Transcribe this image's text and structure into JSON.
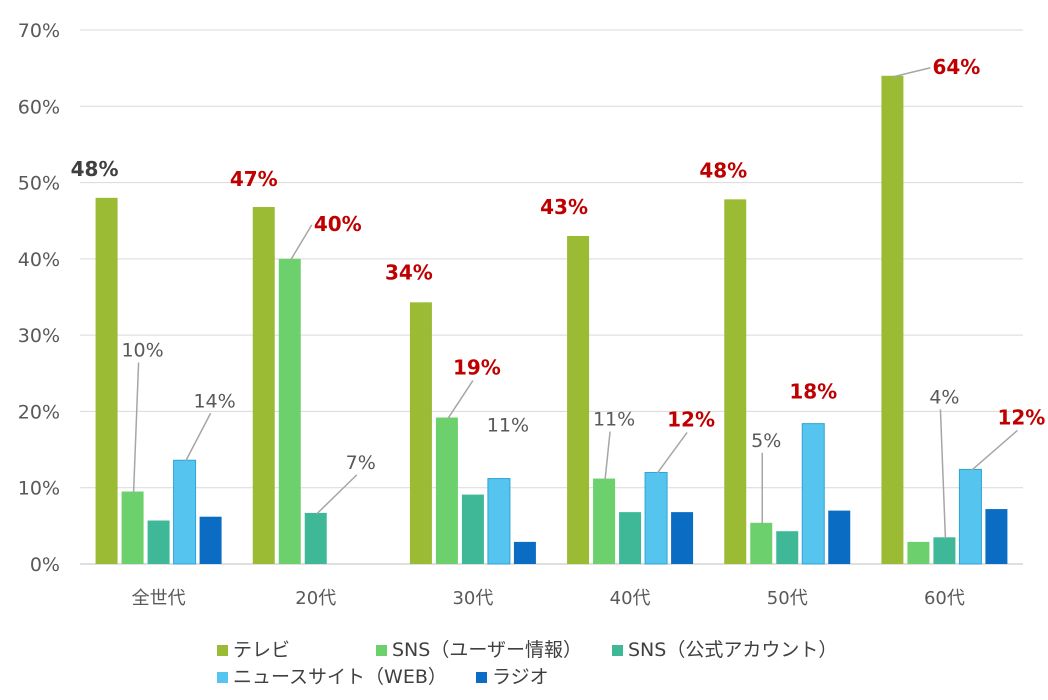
{
  "chart_data": {
    "type": "bar",
    "categories": [
      "全世代",
      "20代",
      "30代",
      "40代",
      "50代",
      "60代"
    ],
    "ylim": [
      0,
      70
    ],
    "yticks": [
      "0%",
      "10%",
      "20%",
      "30%",
      "40%",
      "50%",
      "60%",
      "70%"
    ],
    "grid": true,
    "legend_position": "bottom",
    "series": [
      {
        "name": "テレビ",
        "color": "#9bbb34",
        "values": [
          48,
          46.8,
          34.3,
          43,
          47.8,
          64
        ]
      },
      {
        "name": "SNS（ユーザー情報）",
        "color": "#6cd06c",
        "values": [
          9.5,
          40,
          19.2,
          11.2,
          5.4,
          2.9
        ]
      },
      {
        "name": "SNS（公式アカウント）",
        "color": "#3fb897",
        "values": [
          5.7,
          6.7,
          9.1,
          6.8,
          4.3,
          3.5
        ]
      },
      {
        "name": "ニュースサイト（WEB）",
        "color": "#55c5f0",
        "values": [
          13.6,
          null,
          11.2,
          12,
          18.4,
          12.4
        ]
      },
      {
        "name": "ラジオ",
        "color": "#0a6cc2",
        "values": [
          6.2,
          null,
          2.9,
          6.8,
          7,
          7.2
        ]
      }
    ],
    "annotations": [
      {
        "text": "48%",
        "style": "dark",
        "cat": 0,
        "series": 0
      },
      {
        "text": "10%",
        "style": "plain",
        "cat": 0,
        "series": 1
      },
      {
        "text": "14%",
        "style": "plain",
        "cat": 0,
        "series": 3
      },
      {
        "text": "47%",
        "style": "red",
        "cat": 1,
        "series": 0
      },
      {
        "text": "40%",
        "style": "red",
        "cat": 1,
        "series": 1
      },
      {
        "text": "7%",
        "style": "plain",
        "cat": 1,
        "series": 2
      },
      {
        "text": "34%",
        "style": "red",
        "cat": 2,
        "series": 0
      },
      {
        "text": "19%",
        "style": "red",
        "cat": 2,
        "series": 1
      },
      {
        "text": "11%",
        "style": "plain",
        "cat": 2,
        "series": 3
      },
      {
        "text": "43%",
        "style": "red",
        "cat": 3,
        "series": 0
      },
      {
        "text": "11%",
        "style": "plain",
        "cat": 3,
        "series": 1
      },
      {
        "text": "12%",
        "style": "red",
        "cat": 3,
        "series": 3
      },
      {
        "text": "48%",
        "style": "red",
        "cat": 4,
        "series": 0
      },
      {
        "text": "5%",
        "style": "plain",
        "cat": 4,
        "series": 1
      },
      {
        "text": "18%",
        "style": "red",
        "cat": 4,
        "series": 3
      },
      {
        "text": "64%",
        "style": "red",
        "cat": 5,
        "series": 0
      },
      {
        "text": "4%",
        "style": "plain",
        "cat": 5,
        "series": 2
      },
      {
        "text": "12%",
        "style": "red",
        "cat": 5,
        "series": 3
      }
    ]
  }
}
